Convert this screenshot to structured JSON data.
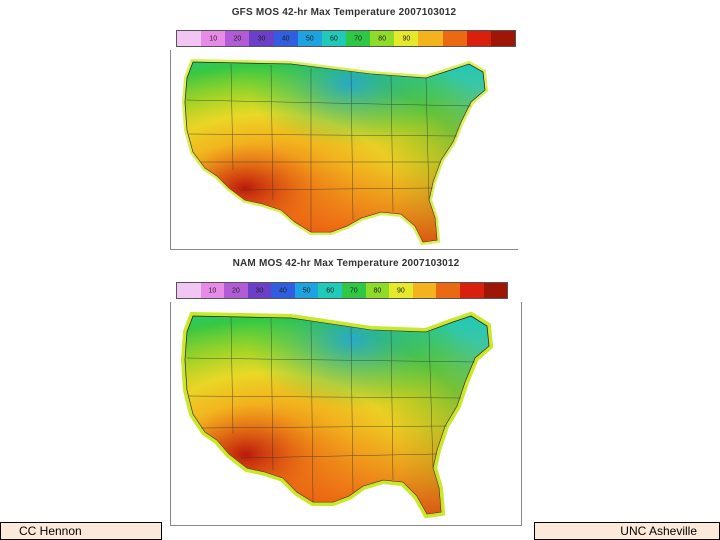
{
  "maps": [
    {
      "title": "GFS MOS 42-hr Max Temperature 2007103012",
      "colorbar_labels": [
        "10",
        "20",
        "30",
        "40",
        "50",
        "60",
        "70",
        "80",
        "90"
      ],
      "colorbar_colors": [
        "#f2c6f2",
        "#e88ae8",
        "#b15cd6",
        "#6c3fc9",
        "#2f5fe0",
        "#1fa3e0",
        "#20c9b8",
        "#2fc845",
        "#8edb2a",
        "#e6e82a",
        "#f2b31e",
        "#ea6a14",
        "#d8200c",
        "#9e1606"
      ]
    },
    {
      "title": "NAM MOS 42-hr Max Temperature 2007103012",
      "colorbar_labels": [
        "10",
        "20",
        "30",
        "40",
        "50",
        "60",
        "70",
        "80",
        "90"
      ],
      "colorbar_colors": [
        "#f2c6f2",
        "#e88ae8",
        "#b15cd6",
        "#6c3fc9",
        "#2f5fe0",
        "#1fa3e0",
        "#20c9b8",
        "#2fc845",
        "#8edb2a",
        "#e6e82a",
        "#f2b31e",
        "#ea6a14",
        "#d8200c",
        "#9e1606"
      ]
    }
  ],
  "footer": {
    "left": "CC Hennon",
    "right": "UNC Asheville"
  }
}
